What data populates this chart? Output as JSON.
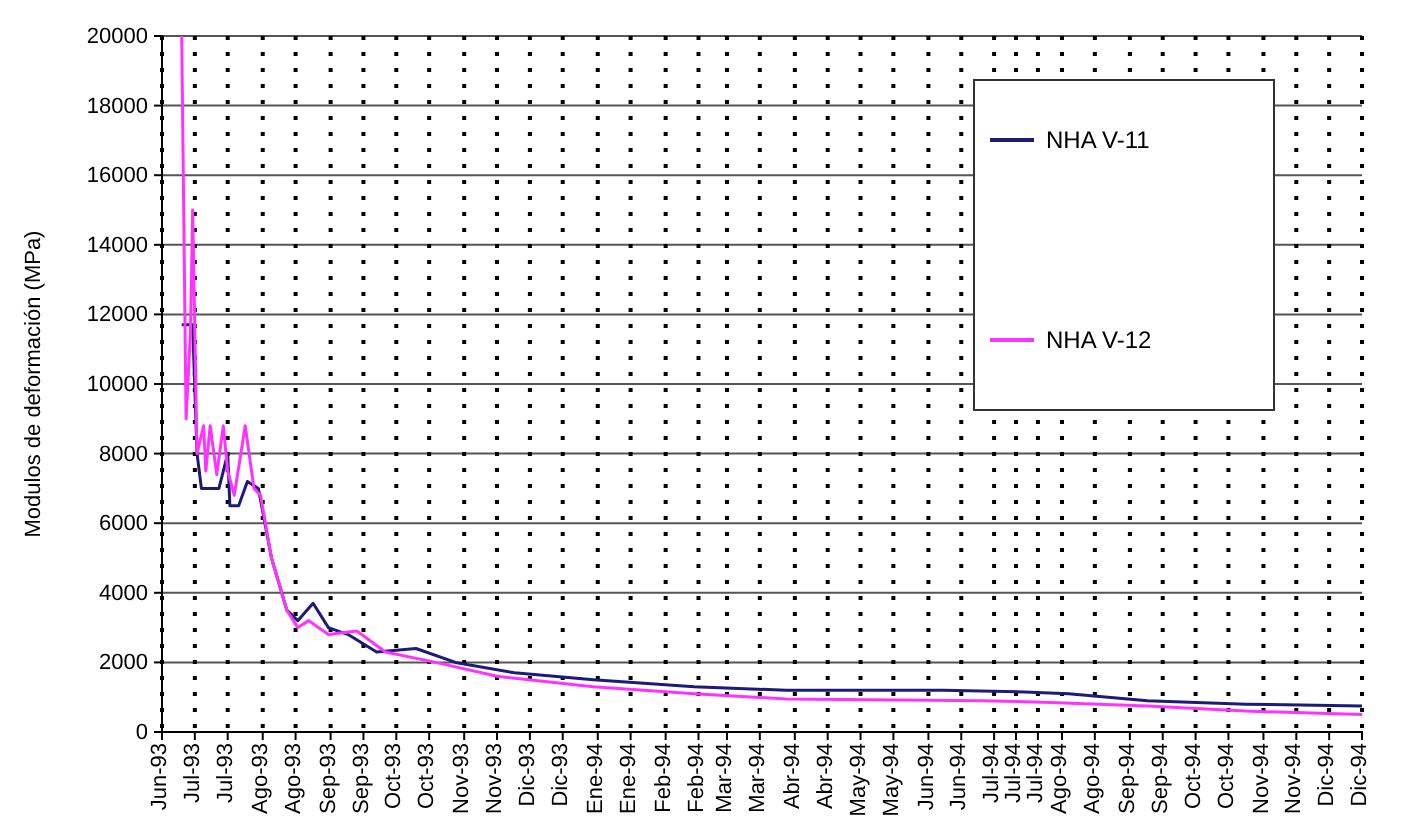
{
  "chart_data": {
    "type": "line",
    "ylabel": "Modulos de deformación (MPa)",
    "xlim": [
      "1993-06-16",
      "1994-12-16"
    ],
    "ylim": [
      0,
      20000
    ],
    "yticks": [
      0,
      2000,
      4000,
      6000,
      8000,
      10000,
      12000,
      14000,
      16000,
      18000,
      20000
    ],
    "xticks": [
      {
        "value": "1993-06-16",
        "label": "Jun-93"
      },
      {
        "value": "1993-07-01",
        "label": "Jul-93"
      },
      {
        "value": "1993-07-16",
        "label": "Jul-93"
      },
      {
        "value": "1993-08-01",
        "label": "Ago-93"
      },
      {
        "value": "1993-08-16",
        "label": "Ago-93"
      },
      {
        "value": "1993-09-01",
        "label": "Sep-93"
      },
      {
        "value": "1993-09-16",
        "label": "Sep-93"
      },
      {
        "value": "1993-10-01",
        "label": "Oct-93"
      },
      {
        "value": "1993-10-16",
        "label": "Oct-93"
      },
      {
        "value": "1993-11-01",
        "label": "Nov-93"
      },
      {
        "value": "1993-11-16",
        "label": "Nov-93"
      },
      {
        "value": "1993-12-01",
        "label": "Dic-93"
      },
      {
        "value": "1993-12-16",
        "label": "Dic-93"
      },
      {
        "value": "1994-01-01",
        "label": "Ene-94"
      },
      {
        "value": "1994-01-16",
        "label": "Ene-94"
      },
      {
        "value": "1994-02-01",
        "label": "Feb-94"
      },
      {
        "value": "1994-02-16",
        "label": "Feb-94"
      },
      {
        "value": "1994-03-01",
        "label": "Mar-94"
      },
      {
        "value": "1994-03-16",
        "label": "Mar-94"
      },
      {
        "value": "1994-04-01",
        "label": "Abr-94"
      },
      {
        "value": "1994-04-16",
        "label": "Abr-94"
      },
      {
        "value": "1994-05-01",
        "label": "May-94"
      },
      {
        "value": "1994-05-16",
        "label": "May-94"
      },
      {
        "value": "1994-06-01",
        "label": "Jun-94"
      },
      {
        "value": "1994-06-16",
        "label": "Jun-94"
      },
      {
        "value": "1994-07-01",
        "label": "Jul-94"
      },
      {
        "value": "1994-07-11",
        "label": "Jul-94"
      },
      {
        "value": "1994-07-21",
        "label": "Jul-94"
      },
      {
        "value": "1994-08-01",
        "label": "Ago-94"
      },
      {
        "value": "1994-08-16",
        "label": "Ago-94"
      },
      {
        "value": "1994-09-01",
        "label": "Sep-94"
      },
      {
        "value": "1994-09-16",
        "label": "Sep-94"
      },
      {
        "value": "1994-10-01",
        "label": "Oct-94"
      },
      {
        "value": "1994-10-16",
        "label": "Oct-94"
      },
      {
        "value": "1994-11-01",
        "label": "Nov-94"
      },
      {
        "value": "1994-11-16",
        "label": "Nov-94"
      },
      {
        "value": "1994-12-01",
        "label": "Dic-94"
      },
      {
        "value": "1994-12-16",
        "label": "Dic-94"
      }
    ],
    "grid": true,
    "legend": "top right",
    "marker": "none",
    "line_style": "solid",
    "series": [
      {
        "name": "NHA V-11",
        "color": "#1c1c78",
        "x": [
          "1993-06-25",
          "1993-06-30",
          "1993-07-02",
          "1993-07-04",
          "1993-07-12",
          "1993-07-16",
          "1993-07-17",
          "1993-07-21",
          "1993-07-25",
          "1993-07-30",
          "1993-08-05",
          "1993-08-12",
          "1993-08-17",
          "1993-08-24",
          "1993-08-31",
          "1993-09-09",
          "1993-09-22",
          "1993-10-10",
          "1993-10-28",
          "1993-11-24",
          "1993-12-30",
          "1994-02-14",
          "1994-03-28",
          "1994-06-08",
          "1994-07-15",
          "1994-08-04",
          "1994-09-09",
          "1994-10-24",
          "1994-12-16"
        ],
        "values": [
          11700,
          11700,
          8000,
          7000,
          7000,
          8000,
          6500,
          6500,
          7200,
          7000,
          5000,
          3500,
          3200,
          3700,
          3000,
          2800,
          2300,
          2400,
          2000,
          1700,
          1500,
          1300,
          1200,
          1200,
          1150,
          1100,
          900,
          800,
          750
        ]
      },
      {
        "name": "NHA V-12",
        "color": "#ff33ff",
        "x": [
          "1993-06-25",
          "1993-06-27",
          "1993-06-29",
          "1993-06-30",
          "1993-07-02",
          "1993-07-05",
          "1993-07-06",
          "1993-07-08",
          "1993-07-11",
          "1993-07-14",
          "1993-07-16",
          "1993-07-19",
          "1993-07-24",
          "1993-07-28",
          "1993-07-31",
          "1993-08-05",
          "1993-08-12",
          "1993-08-17",
          "1993-08-22",
          "1993-08-31",
          "1993-09-13",
          "1993-09-26",
          "1993-10-19",
          "1993-11-16",
          "1993-12-30",
          "1994-02-14",
          "1994-03-28",
          "1994-06-26",
          "1994-07-27",
          "1994-09-09",
          "1994-10-24",
          "1994-12-16"
        ],
        "values": [
          20000,
          9000,
          11500,
          15000,
          8000,
          8800,
          7500,
          8800,
          7400,
          8800,
          7500,
          6800,
          8800,
          7000,
          6800,
          5000,
          3500,
          3000,
          3200,
          2800,
          2900,
          2300,
          2000,
          1600,
          1300,
          1100,
          950,
          900,
          850,
          750,
          600,
          500
        ]
      }
    ]
  }
}
